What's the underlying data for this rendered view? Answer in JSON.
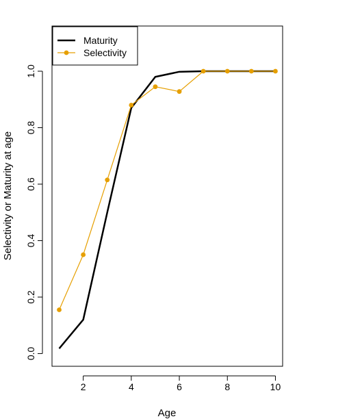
{
  "chart_data": {
    "type": "line",
    "xlabel": "Age",
    "ylabel": "Selectivity or Maturity at age",
    "xlim": [
      0.7,
      10.3
    ],
    "ylim": [
      -0.045,
      1.16
    ],
    "xticks": [
      "2",
      "4",
      "6",
      "8",
      "10"
    ],
    "yticks": [
      "0.0",
      "0.2",
      "0.4",
      "0.6",
      "0.8",
      "1.0"
    ],
    "x": [
      1,
      2,
      3,
      4,
      5,
      6,
      7,
      8,
      9,
      10
    ],
    "series": [
      {
        "name": "Maturity",
        "values": [
          0.018,
          0.12,
          0.5,
          0.87,
          0.98,
          0.998,
          1.0,
          1.0,
          1.0,
          1.0
        ],
        "color": "#000000",
        "markers": false
      },
      {
        "name": "Selectivity",
        "values": [
          0.155,
          0.35,
          0.615,
          0.88,
          0.945,
          0.928,
          1.0,
          1.0,
          1.0,
          1.0
        ],
        "color": "#E69F00",
        "markers": true
      }
    ],
    "legend": {
      "position": "top-left",
      "entries": [
        "Maturity",
        "Selectivity"
      ]
    },
    "grid": false
  }
}
